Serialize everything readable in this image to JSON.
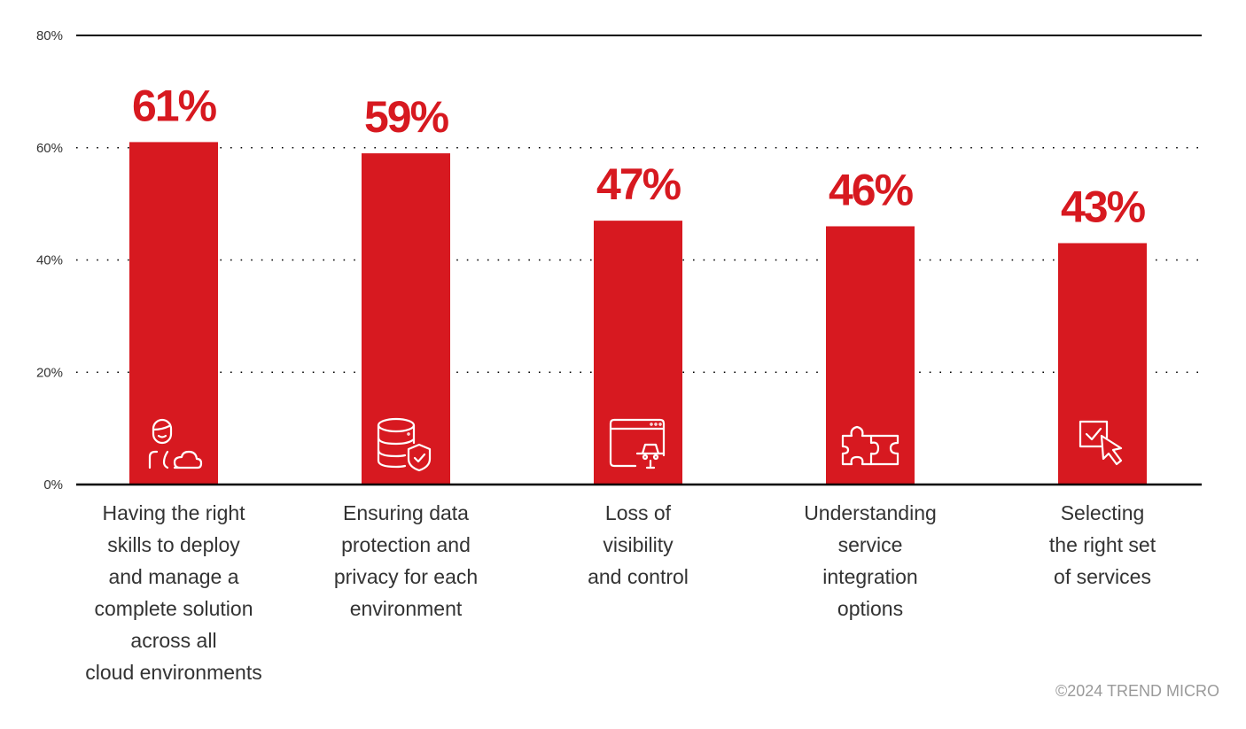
{
  "chart_data": {
    "type": "bar",
    "title": "",
    "xlabel": "",
    "ylabel": "",
    "ylim": [
      0,
      80
    ],
    "yticks": [
      0,
      20,
      40,
      60,
      80
    ],
    "ytick_labels": [
      "0%",
      "20%",
      "40%",
      "60%",
      "80%"
    ],
    "grid": "dotted horizontal",
    "categories": [
      "Having the right\nskills to deploy\nand manage a\ncomplete solution\nacross all\ncloud environments",
      "Ensuring data\nprotection and\nprivacy for each\nenvironment",
      "Loss of\nvisibility\nand control",
      "Understanding\nservice\nintegration\noptions",
      "Selecting\nthe right set\nof services"
    ],
    "values": [
      61,
      59,
      47,
      46,
      43
    ],
    "value_labels": [
      "61%",
      "59%",
      "47%",
      "46%",
      "43%"
    ],
    "icons": [
      "person-cloud-icon",
      "database-shield-icon",
      "browser-spy-icon",
      "puzzle-icon",
      "checkbox-cursor-icon"
    ],
    "bar_color": "#d71920"
  },
  "footer": {
    "copyright": "©2024 TREND MICRO"
  }
}
